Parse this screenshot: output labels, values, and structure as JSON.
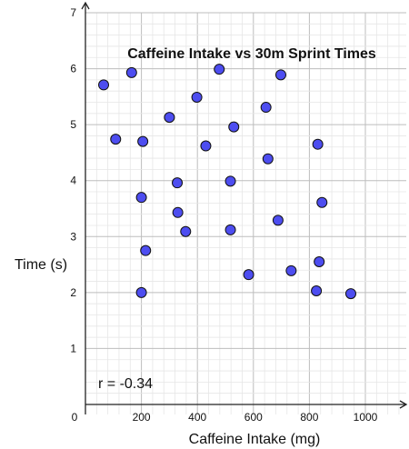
{
  "chart_data": {
    "type": "scatter",
    "title": "Caffeine Intake vs 30m Sprint Times",
    "xlabel": "Caffeine Intake (mg)",
    "ylabel": "Time (s)",
    "annotation": "r = -0.34",
    "xlim": [
      0,
      1000
    ],
    "ylim": [
      0,
      7
    ],
    "x_ticks": [
      0,
      200,
      400,
      600,
      800,
      1000
    ],
    "y_ticks": [
      1,
      2,
      3,
      4,
      5,
      6,
      7
    ],
    "grid": true,
    "marker_color": "#4d4df0",
    "points": [
      {
        "x": 65,
        "y": 5.71
      },
      {
        "x": 165,
        "y": 5.93
      },
      {
        "x": 478,
        "y": 5.99
      },
      {
        "x": 698,
        "y": 5.89
      },
      {
        "x": 398,
        "y": 5.49
      },
      {
        "x": 300,
        "y": 5.13
      },
      {
        "x": 645,
        "y": 5.31
      },
      {
        "x": 108,
        "y": 4.74
      },
      {
        "x": 205,
        "y": 4.7
      },
      {
        "x": 430,
        "y": 4.62
      },
      {
        "x": 530,
        "y": 4.96
      },
      {
        "x": 652,
        "y": 4.39
      },
      {
        "x": 830,
        "y": 4.65
      },
      {
        "x": 328,
        "y": 3.96
      },
      {
        "x": 518,
        "y": 3.99
      },
      {
        "x": 200,
        "y": 3.7
      },
      {
        "x": 845,
        "y": 3.61
      },
      {
        "x": 330,
        "y": 3.43
      },
      {
        "x": 688,
        "y": 3.29
      },
      {
        "x": 358,
        "y": 3.09
      },
      {
        "x": 518,
        "y": 3.12
      },
      {
        "x": 215,
        "y": 2.75
      },
      {
        "x": 835,
        "y": 2.55
      },
      {
        "x": 735,
        "y": 2.39
      },
      {
        "x": 583,
        "y": 2.32
      },
      {
        "x": 200,
        "y": 2.0
      },
      {
        "x": 825,
        "y": 2.03
      },
      {
        "x": 948,
        "y": 1.98
      }
    ]
  }
}
